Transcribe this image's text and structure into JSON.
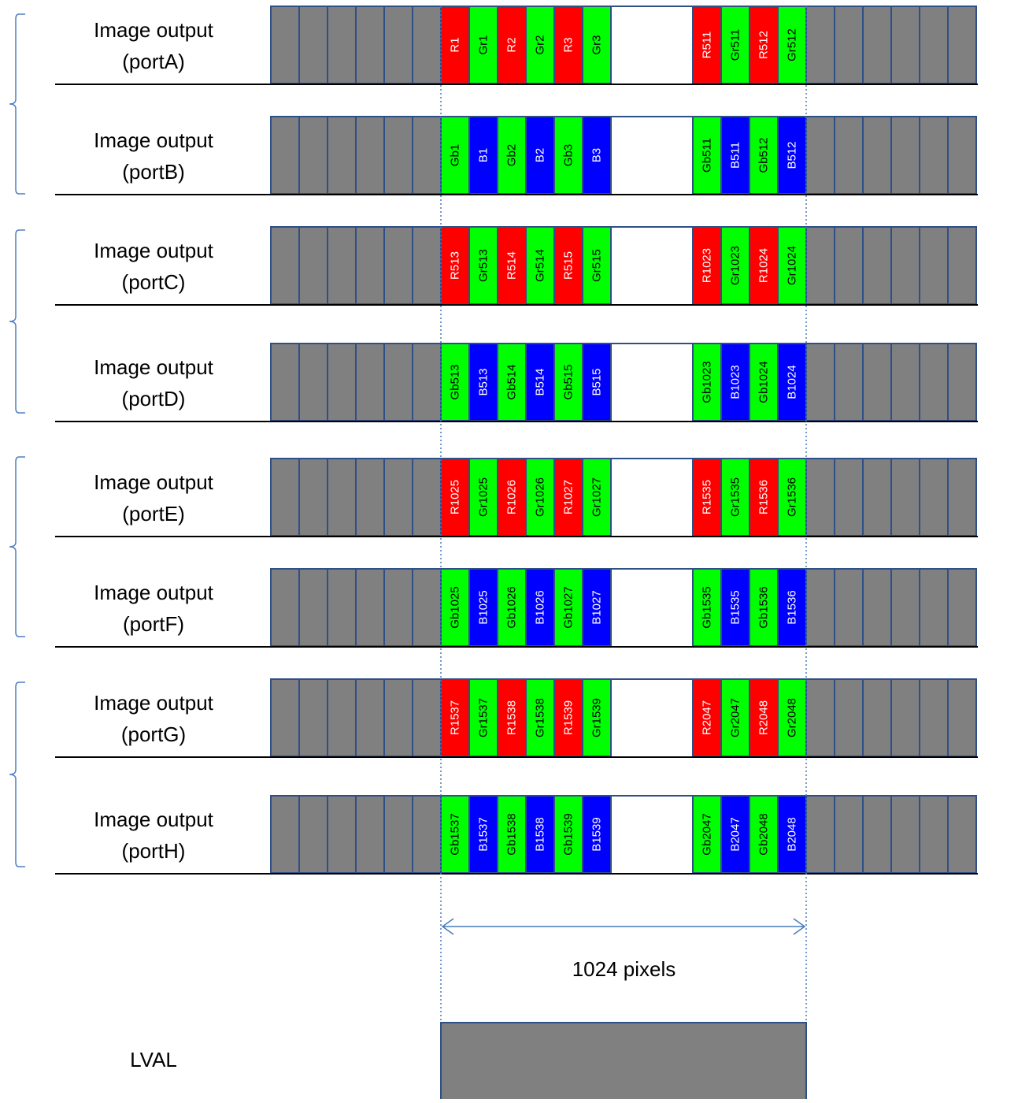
{
  "colors": {
    "gray": "#808080",
    "red": "#ff0000",
    "green": "#00ff00",
    "blue": "#0000ff",
    "stroke": "#2f4f87",
    "dotted": "#4a7ab8",
    "bracket": "#4f7fc0",
    "baseline": "#000000"
  },
  "rows": [
    {
      "label_line1": "Image output",
      "label_line2": "(portA)",
      "colors": [
        "red",
        "green",
        "red",
        "green",
        "red",
        "green"
      ],
      "left": [
        "R1",
        "Gr1",
        "R2",
        "Gr2",
        "R3",
        "Gr3"
      ],
      "right": [
        "R511",
        "Gr511",
        "R512",
        "Gr512"
      ],
      "right_colors": [
        "red",
        "green",
        "red",
        "green"
      ]
    },
    {
      "label_line1": "Image output",
      "label_line2": "(portB)",
      "colors": [
        "green",
        "blue",
        "green",
        "blue",
        "green",
        "blue"
      ],
      "left": [
        "Gb1",
        "B1",
        "Gb2",
        "B2",
        "Gb3",
        "B3"
      ],
      "right": [
        "Gb511",
        "B511",
        "Gb512",
        "B512"
      ],
      "right_colors": [
        "green",
        "blue",
        "green",
        "blue"
      ]
    },
    {
      "label_line1": "Image output",
      "label_line2": "(portC)",
      "colors": [
        "red",
        "green",
        "red",
        "green",
        "red",
        "green"
      ],
      "left": [
        "R513",
        "Gr513",
        "R514",
        "Gr514",
        "R515",
        "Gr515"
      ],
      "right": [
        "R1023",
        "Gr1023",
        "R1024",
        "Gr1024"
      ],
      "right_colors": [
        "red",
        "green",
        "red",
        "green"
      ]
    },
    {
      "label_line1": "Image output",
      "label_line2": "(portD)",
      "colors": [
        "green",
        "blue",
        "green",
        "blue",
        "green",
        "blue"
      ],
      "left": [
        "Gb513",
        "B513",
        "Gb514",
        "B514",
        "Gb515",
        "B515"
      ],
      "right": [
        "Gb1023",
        "B1023",
        "Gb1024",
        "B1024"
      ],
      "right_colors": [
        "green",
        "blue",
        "green",
        "blue"
      ]
    },
    {
      "label_line1": "Image output",
      "label_line2": "(portE)",
      "colors": [
        "red",
        "green",
        "red",
        "green",
        "red",
        "green"
      ],
      "left": [
        "R1025",
        "Gr1025",
        "R1026",
        "Gr1026",
        "R1027",
        "Gr1027"
      ],
      "right": [
        "R1535",
        "Gr1535",
        "R1536",
        "Gr1536"
      ],
      "right_colors": [
        "red",
        "green",
        "red",
        "green"
      ]
    },
    {
      "label_line1": "Image output",
      "label_line2": "(portF)",
      "colors": [
        "green",
        "blue",
        "green",
        "blue",
        "green",
        "blue"
      ],
      "left": [
        "Gb1025",
        "B1025",
        "Gb1026",
        "B1026",
        "Gb1027",
        "B1027"
      ],
      "right": [
        "Gb1535",
        "B1535",
        "Gb1536",
        "B1536"
      ],
      "right_colors": [
        "green",
        "blue",
        "green",
        "blue"
      ]
    },
    {
      "label_line1": "Image output",
      "label_line2": "(portG)",
      "colors": [
        "red",
        "green",
        "red",
        "green",
        "red",
        "green"
      ],
      "left": [
        "R1537",
        "Gr1537",
        "R1538",
        "Gr1538",
        "R1539",
        "Gr1539"
      ],
      "right": [
        "R2047",
        "Gr2047",
        "R2048",
        "Gr2048"
      ],
      "right_colors": [
        "red",
        "green",
        "red",
        "green"
      ]
    },
    {
      "label_line1": "Image output",
      "label_line2": "(portH)",
      "colors": [
        "green",
        "blue",
        "green",
        "blue",
        "green",
        "blue"
      ],
      "left": [
        "Gb1537",
        "B1537",
        "Gb1538",
        "B1538",
        "Gb1539",
        "B1539"
      ],
      "right": [
        "Gb2047",
        "B2047",
        "Gb2048",
        "B2048"
      ],
      "right_colors": [
        "green",
        "blue",
        "green",
        "blue"
      ]
    }
  ],
  "measure_label": "1024 pixels",
  "lval_label": "LVAL"
}
